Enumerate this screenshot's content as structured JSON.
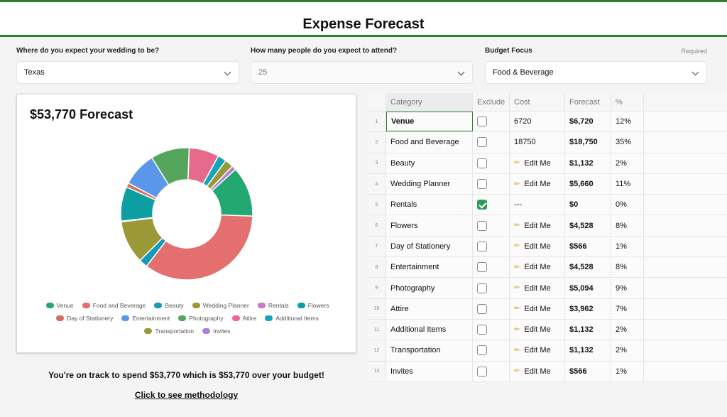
{
  "header": {
    "title": "Expense Forecast"
  },
  "form": {
    "location": {
      "label": "Where do you expect your wedding to be?",
      "value": "Texas"
    },
    "attendance": {
      "label": "How many people do you expect to attend?",
      "value": "25"
    },
    "focus": {
      "label": "Budget Focus",
      "required": "Required",
      "value": "Food & Beverage"
    }
  },
  "chart_data": {
    "type": "pie",
    "title": "$53,770 Forecast",
    "categories": [
      "Venue",
      "Food and Beverage",
      "Beauty",
      "Wedding Planner",
      "Rentals",
      "Flowers",
      "Day of Stationery",
      "Entertainment",
      "Photography",
      "Attire",
      "Additional Items",
      "Transportation",
      "Invites"
    ],
    "values": [
      6720,
      18750,
      1132,
      5660,
      0,
      4528,
      566,
      4528,
      5094,
      3962,
      1132,
      1132,
      566
    ],
    "colors": [
      "#22a870",
      "#e46f6f",
      "#139ab8",
      "#9b9836",
      "#c77ac6",
      "#0c9fa1",
      "#d2705a",
      "#5a96ea",
      "#55a65b",
      "#e66a8c",
      "#11a6b9",
      "#9b9836",
      "#b07fd0"
    ],
    "legend_position": "bottom"
  },
  "summary": {
    "text": "You're on track to spend $53,770 which is $53,770 over your budget!",
    "link": "Click to see methodology"
  },
  "table": {
    "headers": {
      "category": "Category",
      "exclude": "Exclude",
      "cost": "Cost",
      "forecast": "Forecast",
      "pct": "%"
    },
    "rows": [
      {
        "idx": "1",
        "category": "Venue",
        "excluded": false,
        "cost": "6720",
        "edit": false,
        "forecast": "$6,720",
        "pct": "12%"
      },
      {
        "idx": "2",
        "category": "Food and Beverage",
        "excluded": false,
        "cost": "18750",
        "edit": false,
        "forecast": "$18,750",
        "pct": "35%"
      },
      {
        "idx": "3",
        "category": "Beauty",
        "excluded": false,
        "cost": "Edit Me",
        "edit": true,
        "forecast": "$1,132",
        "pct": "2%"
      },
      {
        "idx": "4",
        "category": "Wedding Planner",
        "excluded": false,
        "cost": "Edit Me",
        "edit": true,
        "forecast": "$5,660",
        "pct": "11%"
      },
      {
        "idx": "5",
        "category": "Rentals",
        "excluded": true,
        "cost": "---",
        "edit": false,
        "forecast": "$0",
        "pct": "0%"
      },
      {
        "idx": "6",
        "category": "Flowers",
        "excluded": false,
        "cost": "Edit Me",
        "edit": true,
        "forecast": "$4,528",
        "pct": "8%"
      },
      {
        "idx": "7",
        "category": "Day of Stationery",
        "excluded": false,
        "cost": "Edit Me",
        "edit": true,
        "forecast": "$566",
        "pct": "1%"
      },
      {
        "idx": "8",
        "category": "Entertainment",
        "excluded": false,
        "cost": "Edit Me",
        "edit": true,
        "forecast": "$4,528",
        "pct": "8%"
      },
      {
        "idx": "9",
        "category": "Photography",
        "excluded": false,
        "cost": "Edit Me",
        "edit": true,
        "forecast": "$5,094",
        "pct": "9%"
      },
      {
        "idx": "10",
        "category": "Attire",
        "excluded": false,
        "cost": "Edit Me",
        "edit": true,
        "forecast": "$3,962",
        "pct": "7%"
      },
      {
        "idx": "11",
        "category": "Additional Items",
        "excluded": false,
        "cost": "Edit Me",
        "edit": true,
        "forecast": "$1,132",
        "pct": "2%"
      },
      {
        "idx": "12",
        "category": "Transportation",
        "excluded": false,
        "cost": "Edit Me",
        "edit": true,
        "forecast": "$1,132",
        "pct": "2%"
      },
      {
        "idx": "13",
        "category": "Invites",
        "excluded": false,
        "cost": "Edit Me",
        "edit": true,
        "forecast": "$566",
        "pct": "1%"
      }
    ]
  }
}
